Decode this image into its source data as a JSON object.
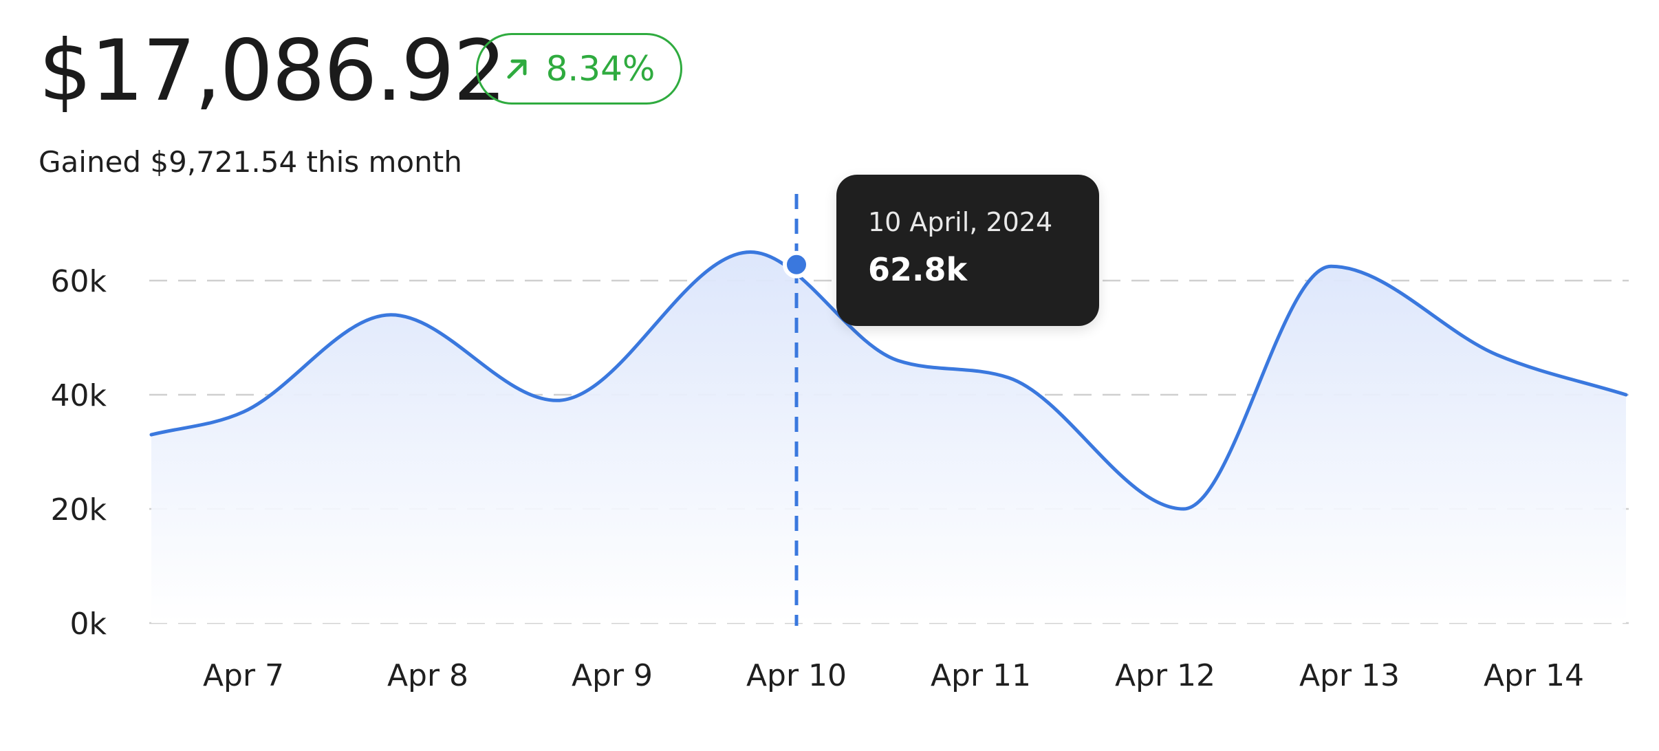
{
  "header": {
    "total_value": "$17,086.92",
    "change_percent": "8.34%",
    "change_icon": "arrow-up-right-icon",
    "subtitle": "Gained $9,721.54 this month"
  },
  "colors": {
    "line": "#3a78de",
    "area_top": "#dce6fb",
    "positive": "#2fab3f",
    "tooltip_bg": "#1f1f1f",
    "grid": "#cccccc"
  },
  "tooltip": {
    "date": "10 April, 2024",
    "value": "62.8k"
  },
  "chart_data": {
    "type": "area",
    "title": "",
    "xlabel": "",
    "ylabel": "",
    "ylim": [
      0,
      65000
    ],
    "y_ticks": [
      0,
      20000,
      40000,
      60000
    ],
    "y_tick_labels": [
      "0k",
      "20k",
      "40k",
      "60k"
    ],
    "grid": true,
    "grid_style": "dashed-horizontal",
    "legend": "none",
    "categories": [
      "Apr 7",
      "Apr 8",
      "Apr 9",
      "Apr 10",
      "Apr 11",
      "Apr 12",
      "Apr 13",
      "Apr 14"
    ],
    "series": [
      {
        "x": [
          6.5,
          7.0,
          7.8,
          8.7,
          9.75,
          10.55,
          11.15,
          12.1,
          12.9,
          13.8,
          14.5
        ],
        "values": [
          33000,
          37000,
          54000,
          39000,
          65000,
          46000,
          43000,
          20000,
          62500,
          47000,
          40000
        ]
      }
    ],
    "highlight": {
      "x": 10.0,
      "y": 62800,
      "label": "10 April, 2024",
      "value_label": "62.8k"
    }
  }
}
